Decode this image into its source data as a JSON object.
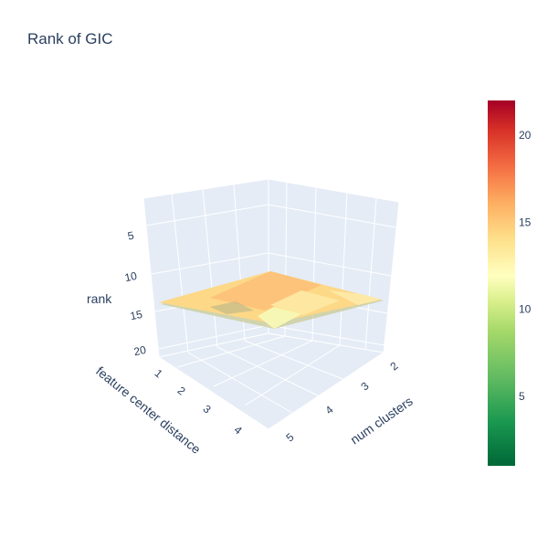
{
  "chart_data": {
    "type": "surface",
    "title": "Rank of GIC",
    "x_axis": {
      "title": "num clusters",
      "ticks": [
        "2",
        "3",
        "4",
        "5"
      ],
      "range": [
        2,
        5
      ]
    },
    "y_axis": {
      "title": "feature center distance",
      "ticks": [
        "1",
        "2",
        "3",
        "4"
      ],
      "range": [
        1,
        4
      ]
    },
    "z_axis": {
      "title": "rank",
      "ticks": [
        "5",
        "10",
        "15",
        "20"
      ],
      "reversed": true
    },
    "x": [
      2,
      3,
      4,
      5
    ],
    "y": [
      1,
      2,
      3,
      4
    ],
    "z": [
      [
        13,
        14,
        13,
        12
      ],
      [
        12,
        13,
        14,
        13
      ],
      [
        13,
        12,
        11,
        12
      ],
      [
        13,
        12,
        13,
        13
      ]
    ],
    "colorscale": "RdYlGn (reversed)",
    "colorbar": {
      "ticks": [
        "5",
        "10",
        "15",
        "20"
      ],
      "range": [
        1,
        22
      ]
    },
    "scene_background": "#e5ecf6",
    "colors": {
      "low": "#006837",
      "mid": "#ffffbf",
      "high": "#a50026",
      "text": "#2a3f5f",
      "grid": "#ffffff"
    }
  }
}
